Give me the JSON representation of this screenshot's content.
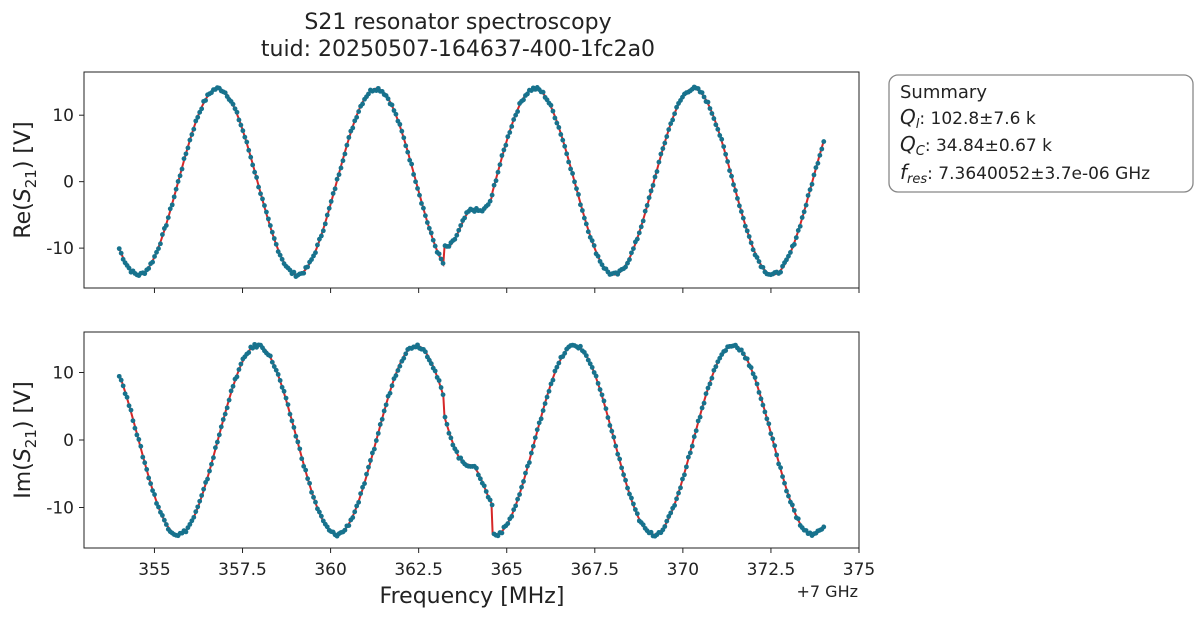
{
  "title_line1": "S21 resonator spectroscopy",
  "title_line2": "tuid: 20250507-164637-400-1fc2a0",
  "summary": {
    "heading": "Summary",
    "ql_label": "Q",
    "ql_sub": "l",
    "ql_value": ": 102.8±7.6 k",
    "qc_label": "Q",
    "qc_sub": "C",
    "qc_value": ": 34.84±0.67 k",
    "fres_label": "f",
    "fres_sub": "res",
    "fres_value": ": 7.3640052±3.7e-06 GHz"
  },
  "chart_data": [
    {
      "type": "scatter",
      "name": "real",
      "ylabel_prefix": "Re(",
      "ylabel_s": "S",
      "ylabel_sub": "21",
      "ylabel_suffix": ") [V]",
      "xlim": [
        353.0,
        375.0
      ],
      "ylim": [
        -16.0,
        16.5
      ],
      "yticks": [
        -10,
        0,
        10
      ],
      "ytick_labels": [
        "-10",
        "0",
        "10"
      ],
      "xticks": [
        355,
        357.5,
        360,
        362.5,
        365,
        367.5,
        370,
        372.5,
        375
      ],
      "x_start": 354.0,
      "x_end": 374.0,
      "n_points": 360,
      "model": {
        "amplitude": 14.0,
        "period_mhz": 4.5,
        "phase_ref_x": 356.8,
        "phase": "cos",
        "resonance_mhz": 364.0,
        "resonance_dip": 2.8,
        "resonance_width_mhz": 0.55,
        "color": "#d62728"
      },
      "marker_color": "#1f77b4",
      "marker_fill": "#17728d"
    },
    {
      "type": "scatter",
      "name": "imag",
      "ylabel_prefix": "Im(",
      "ylabel_s": "S",
      "ylabel_sub": "21",
      "ylabel_suffix": ") [V]",
      "xlabel": "Frequency [MHz]",
      "x_offset_label": "+7 GHz",
      "xlim": [
        353.0,
        375.0
      ],
      "ylim": [
        -16.0,
        16.0
      ],
      "yticks": [
        -10,
        0,
        10
      ],
      "ytick_labels": [
        "-10",
        "0",
        "10"
      ],
      "xticks": [
        355,
        357.5,
        360,
        362.5,
        365,
        367.5,
        370,
        372.5,
        375
      ],
      "xtick_labels": [
        "355",
        "357.5",
        "360",
        "362.5",
        "365",
        "367.5",
        "370",
        "372.5",
        "375"
      ],
      "x_start": 354.0,
      "x_end": 374.0,
      "n_points": 360,
      "model": {
        "amplitude": 14.0,
        "period_mhz": 4.5,
        "phase_ref_x": 356.8,
        "phase": "sin",
        "resonance_mhz": 364.0,
        "resonance_dip": 2.8,
        "resonance_width_mhz": 0.55,
        "color": "#d62728"
      },
      "marker_color": "#1f77b4",
      "marker_fill": "#17728d"
    }
  ]
}
